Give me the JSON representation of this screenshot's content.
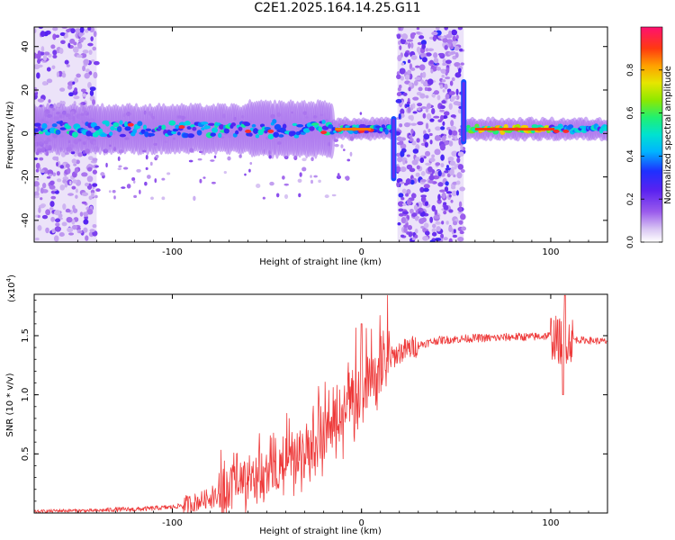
{
  "title": "C2E1.2025.164.14.25.G11",
  "chart_data": [
    {
      "type": "heatmap",
      "xlabel": "Height of straight line (km)",
      "ylabel": "Frequency (Hz)",
      "xlim": [
        -173,
        130
      ],
      "ylim": [
        -50,
        49
      ],
      "xticks": [
        -100,
        0,
        100
      ],
      "yticks": [
        -40,
        -20,
        0,
        20,
        40
      ],
      "colorbar": {
        "label": "Normalized spectral amplitude",
        "range": [
          0,
          1
        ],
        "ticks": [
          0.0,
          0.2,
          0.4,
          0.6,
          0.8
        ],
        "tick_labels": [
          "0.0",
          "0.2",
          "0.4",
          "0.6",
          "0.8"
        ],
        "colormap": [
          "#ffffff",
          "#c9a8f0",
          "#7f22e0",
          "#2a10ff",
          "#00c8ff",
          "#19e8a8",
          "#7ee000",
          "#ffd000",
          "#ff4200",
          "#ff1060"
        ]
      },
      "features": [
        {
          "name": "main frequency band",
          "x_range": [
            -173,
            130
          ],
          "y_center": 2,
          "amplitude": 0.6
        },
        {
          "name": "broadband noise region 1",
          "x_range": [
            -173,
            -140
          ],
          "y_range": [
            -50,
            49
          ],
          "amplitude": 0.2
        },
        {
          "name": "broadband noise region 2",
          "x_range": [
            19,
            54
          ],
          "y_range": [
            -50,
            49
          ],
          "amplitude": 0.25
        },
        {
          "name": "spike near 17 km",
          "x": 17,
          "y_range": [
            -22,
            8
          ],
          "amplitude": 0.7
        },
        {
          "name": "spike near 54 km",
          "x": 54,
          "y_range": [
            -5,
            25
          ],
          "amplitude": 0.7
        }
      ]
    },
    {
      "type": "line",
      "xlabel": "Height of straight line (km)",
      "ylabel": "SNR (10 * v/v)",
      "y_multiplier": "(x10",
      "y_multiplier_exponent": "4",
      "y_multiplier_close": ")",
      "xlim": [
        -173,
        130
      ],
      "ylim": [
        0,
        1.85
      ],
      "xticks": [
        -100,
        0,
        100
      ],
      "yticks": [
        0.5,
        1.0,
        1.5
      ],
      "ytick_labels": [
        "0.5",
        "1.0",
        "1.5"
      ],
      "color": "#ee3a3a",
      "x": [
        -173,
        -160,
        -140,
        -130,
        -120,
        -100,
        -90,
        -80,
        -70,
        -60,
        -50,
        -40,
        -30,
        -20,
        -15,
        -10,
        -5,
        0,
        5,
        10,
        15,
        20,
        30,
        40,
        50,
        60,
        70,
        80,
        90,
        100,
        105,
        110,
        120,
        130
      ],
      "values": [
        0.01,
        0.02,
        0.02,
        0.03,
        0.03,
        0.05,
        0.08,
        0.13,
        0.18,
        0.25,
        0.33,
        0.42,
        0.52,
        0.62,
        0.72,
        0.82,
        0.92,
        1.0,
        1.1,
        1.2,
        1.3,
        1.36,
        1.42,
        1.46,
        1.47,
        1.48,
        1.48,
        1.49,
        1.49,
        1.5,
        1.45,
        1.47,
        1.46,
        1.45
      ]
    }
  ]
}
